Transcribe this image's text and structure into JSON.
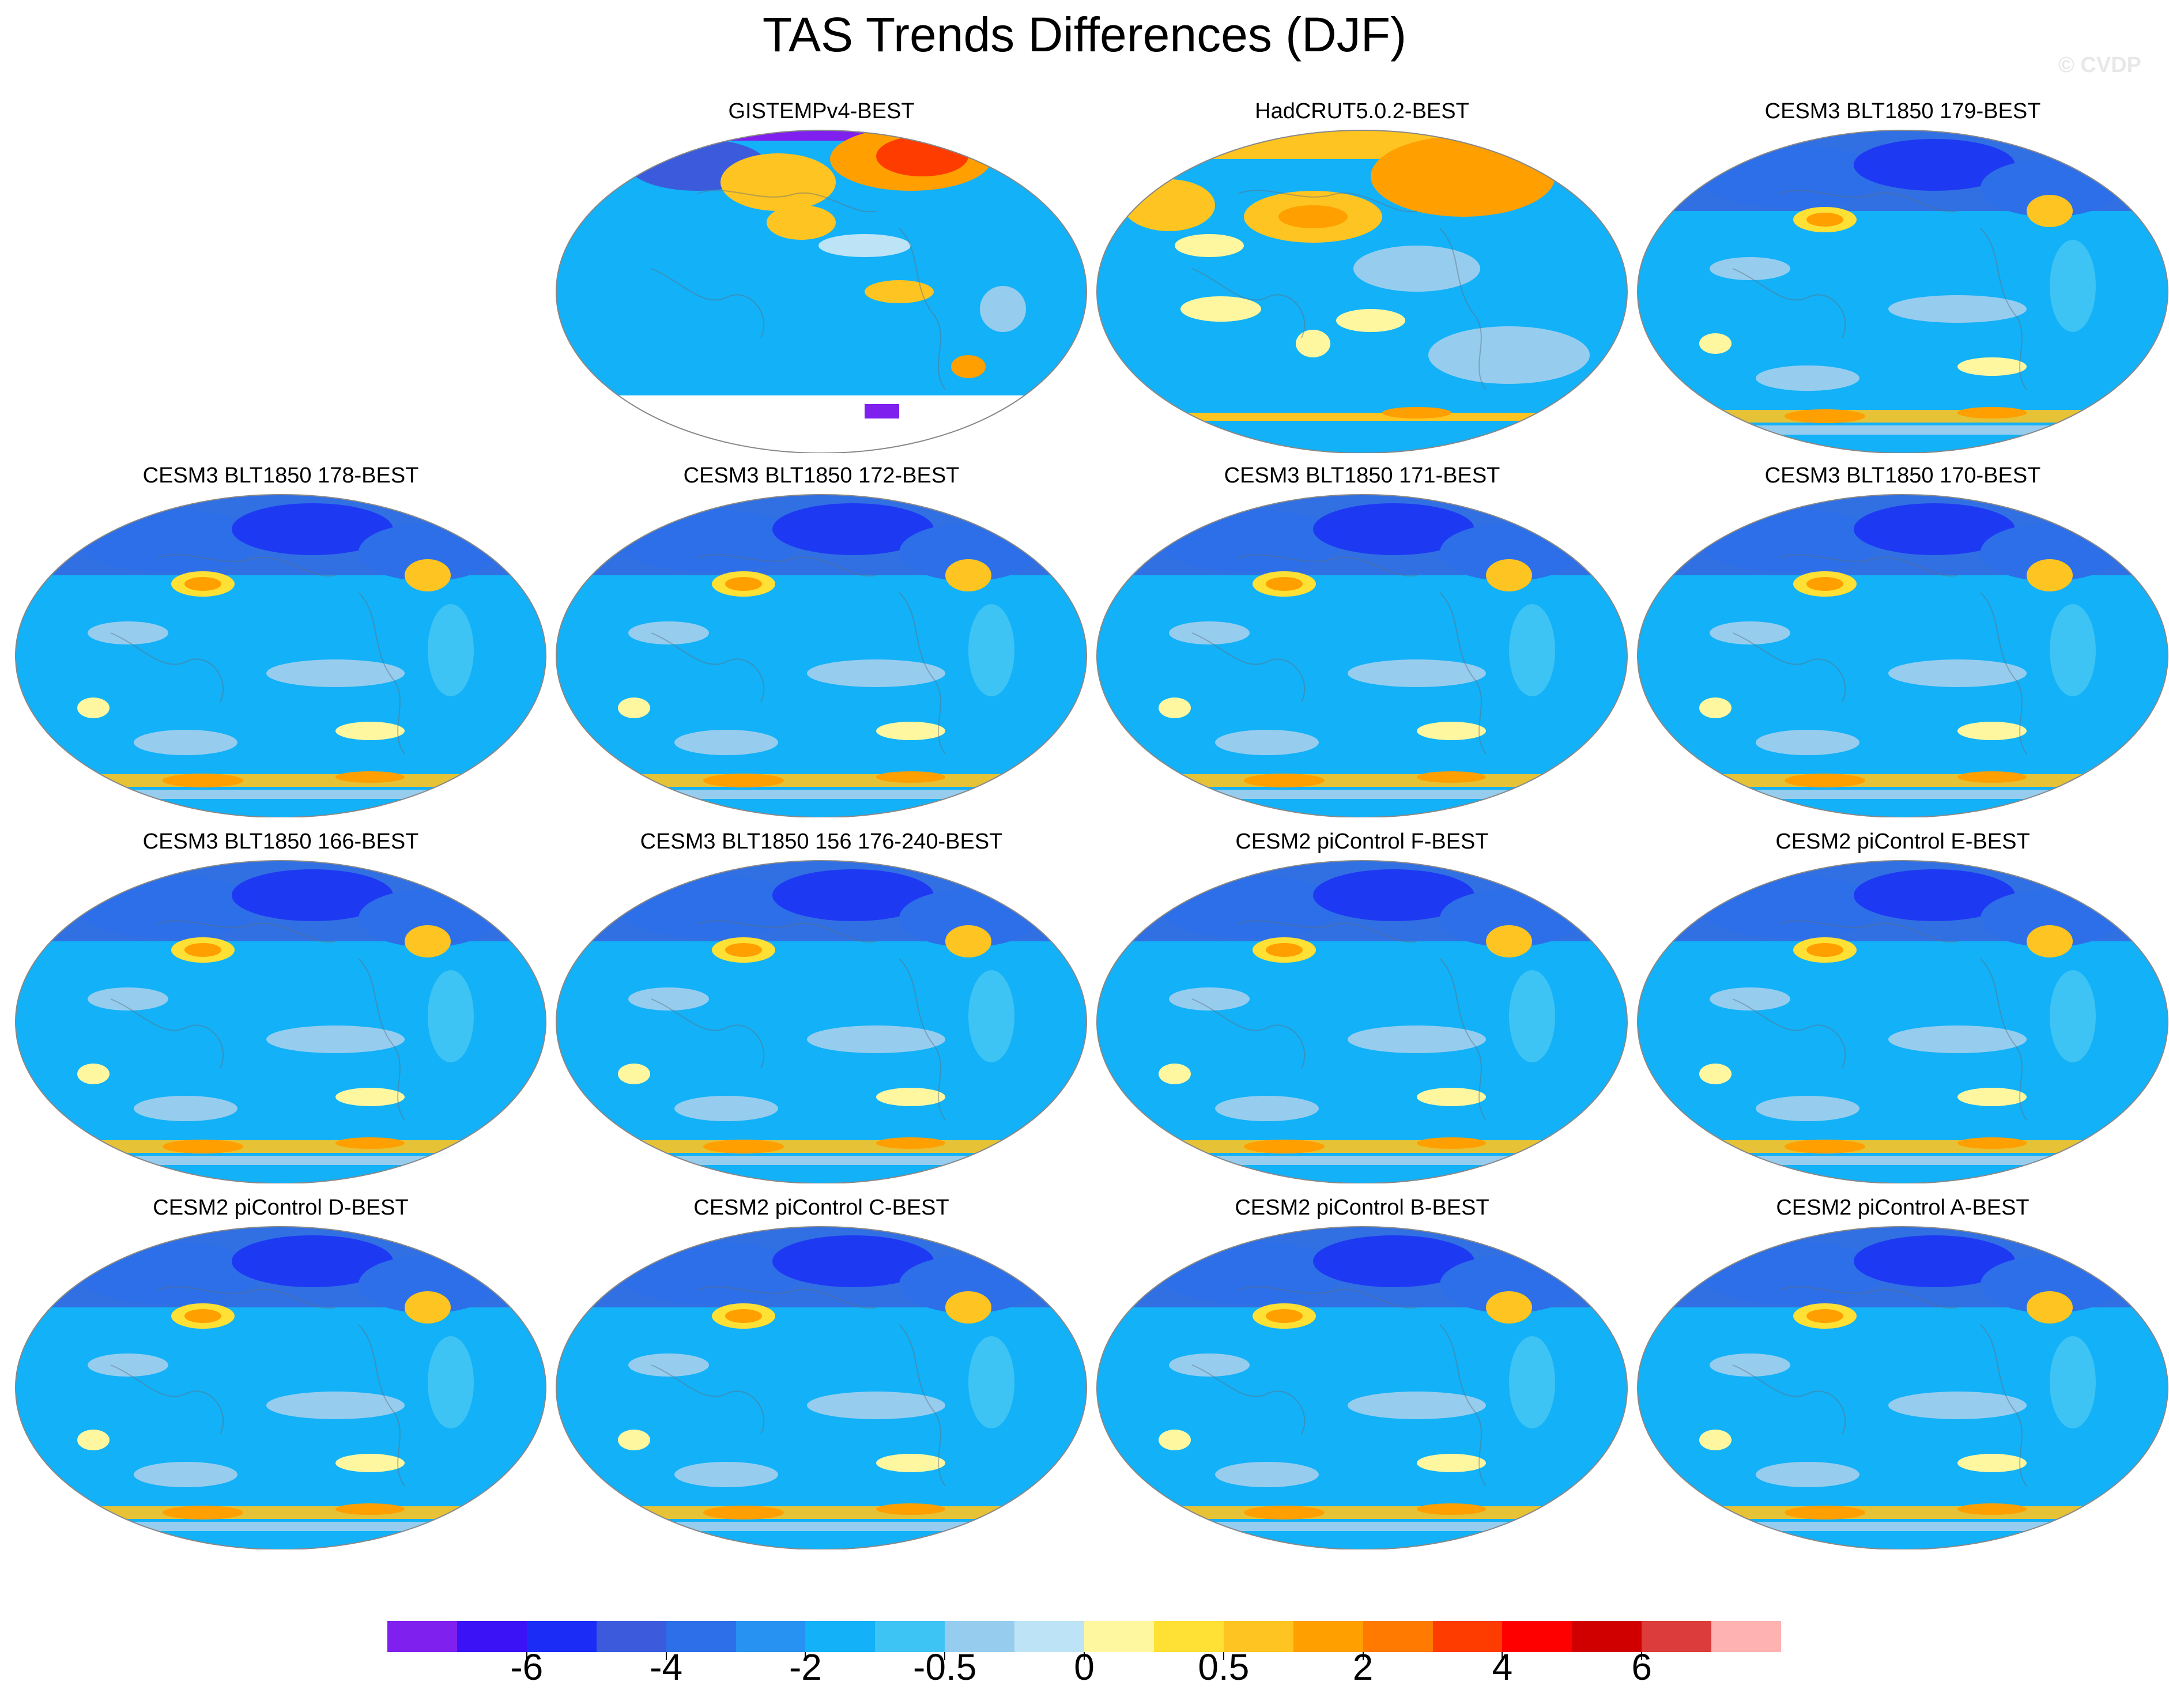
{
  "figure": {
    "title": "TAS Trends Differences (DJF)",
    "watermark": "© CVDP"
  },
  "panels": [
    {
      "title": "GISTEMPv4-BEST",
      "pattern": "gistemp"
    },
    {
      "title": "HadCRUT5.0.2-BEST",
      "pattern": "hadcrut"
    },
    {
      "title": "CESM3 BLT1850 179-BEST",
      "pattern": "model"
    },
    {
      "title": "CESM3 BLT1850 178-BEST",
      "pattern": "model"
    },
    {
      "title": "CESM3 BLT1850 172-BEST",
      "pattern": "model"
    },
    {
      "title": "CESM3 BLT1850 171-BEST",
      "pattern": "model"
    },
    {
      "title": "CESM3 BLT1850 170-BEST",
      "pattern": "model"
    },
    {
      "title": "CESM3 BLT1850 166-BEST",
      "pattern": "model"
    },
    {
      "title": "CESM3 BLT1850 156 176-240-BEST",
      "pattern": "model"
    },
    {
      "title": "CESM2 piControl F-BEST",
      "pattern": "model"
    },
    {
      "title": "CESM2 piControl E-BEST",
      "pattern": "model"
    },
    {
      "title": "CESM2 piControl D-BEST",
      "pattern": "model"
    },
    {
      "title": "CESM2 piControl C-BEST",
      "pattern": "model"
    },
    {
      "title": "CESM2 piControl B-BEST",
      "pattern": "model"
    },
    {
      "title": "CESM2 piControl A-BEST",
      "pattern": "model"
    }
  ],
  "colorbar": {
    "colors": [
      "#7f20ee",
      "#3b12f5",
      "#1a2cf5",
      "#3c5bdc",
      "#2d6fe8",
      "#2792f2",
      "#13b1f7",
      "#3ec3f5",
      "#96cdef",
      "#bde3f7",
      "#fff7a0",
      "#ffe035",
      "#fec421",
      "#ff9f00",
      "#ff7a00",
      "#ff3c00",
      "#ff0000",
      "#d10000",
      "#dc3c3c",
      "#ffb2b2"
    ],
    "tick_labels": [
      "-6",
      "-4",
      "-2",
      "-0.5",
      "0",
      "0.5",
      "2",
      "4",
      "6"
    ]
  }
}
